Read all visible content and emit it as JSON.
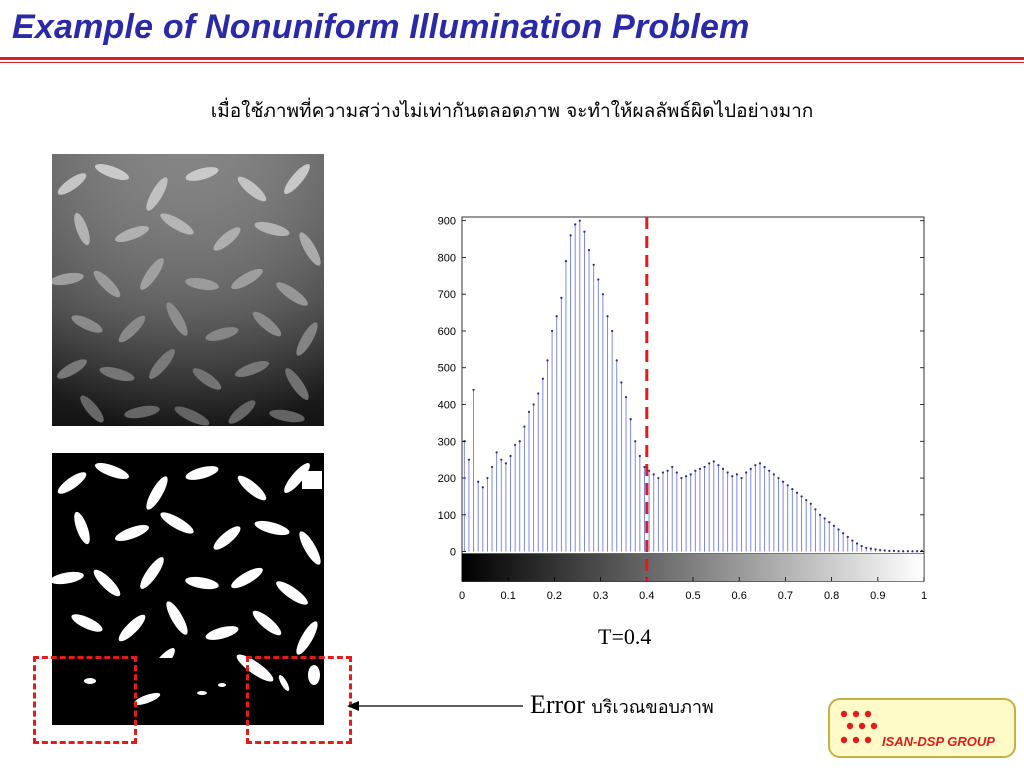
{
  "slide": {
    "title": "Example of Nonuniform Illumination Problem",
    "subtitle": "เมื่อใช้ภาพที่ความสว่างไม่เท่ากันตลอดภาพ จะทำให้ผลลัพธ์ผิดไปอย่างมาก",
    "threshold_label": "T=0.4",
    "error_label": "Error",
    "error_thai": "บริเวณขอบภาพ",
    "logo_text": "ISAN-DSP GROUP",
    "accent_color": "#d62020",
    "title_color": "#2a2aa8"
  },
  "chart_data": {
    "type": "bar",
    "title": "",
    "xlabel": "",
    "ylabel": "",
    "xlim": [
      0,
      1
    ],
    "ylim": [
      -80,
      910
    ],
    "yticks": [
      0,
      100,
      200,
      300,
      400,
      500,
      600,
      700,
      800,
      900
    ],
    "xticks": [
      0,
      0.1,
      0.2,
      0.3,
      0.4,
      0.5,
      0.6,
      0.7,
      0.8,
      0.9,
      1
    ],
    "ytick_labels": [
      "0",
      "100",
      "200",
      "300",
      "400",
      "500",
      "600",
      "700",
      "800",
      "900"
    ],
    "xtick_labels": [
      "0",
      "0.1",
      "0.2",
      "0.3",
      "0.4",
      "0.5",
      "0.6",
      "0.7",
      "0.8",
      "0.9",
      "1"
    ],
    "threshold": 0.4,
    "threshold_color": "#e41b1b",
    "bar_color": "#6f7de0",
    "x": [
      0.005,
      0.015,
      0.025,
      0.035,
      0.045,
      0.055,
      0.065,
      0.075,
      0.085,
      0.095,
      0.105,
      0.115,
      0.125,
      0.135,
      0.145,
      0.155,
      0.165,
      0.175,
      0.185,
      0.195,
      0.205,
      0.215,
      0.225,
      0.235,
      0.245,
      0.255,
      0.265,
      0.275,
      0.285,
      0.295,
      0.305,
      0.315,
      0.325,
      0.335,
      0.345,
      0.355,
      0.365,
      0.375,
      0.385,
      0.395,
      0.405,
      0.415,
      0.425,
      0.435,
      0.445,
      0.455,
      0.465,
      0.475,
      0.485,
      0.495,
      0.505,
      0.515,
      0.525,
      0.535,
      0.545,
      0.555,
      0.565,
      0.575,
      0.585,
      0.595,
      0.605,
      0.615,
      0.625,
      0.635,
      0.645,
      0.655,
      0.665,
      0.675,
      0.685,
      0.695,
      0.705,
      0.715,
      0.725,
      0.735,
      0.745,
      0.755,
      0.765,
      0.775,
      0.785,
      0.795,
      0.805,
      0.815,
      0.825,
      0.835,
      0.845,
      0.855,
      0.865,
      0.875,
      0.885,
      0.895,
      0.905,
      0.915,
      0.925,
      0.935,
      0.945,
      0.955,
      0.965,
      0.975,
      0.985,
      0.995
    ],
    "values": [
      300,
      250,
      440,
      190,
      175,
      200,
      230,
      270,
      250,
      240,
      260,
      290,
      300,
      340,
      380,
      400,
      430,
      470,
      520,
      600,
      640,
      690,
      790,
      860,
      890,
      900,
      870,
      820,
      780,
      740,
      700,
      640,
      600,
      520,
      460,
      420,
      360,
      300,
      260,
      230,
      220,
      210,
      200,
      215,
      220,
      230,
      215,
      200,
      205,
      210,
      220,
      225,
      230,
      240,
      245,
      235,
      225,
      215,
      205,
      210,
      200,
      215,
      225,
      235,
      240,
      230,
      220,
      210,
      200,
      190,
      180,
      170,
      160,
      150,
      140,
      130,
      115,
      100,
      90,
      80,
      70,
      60,
      50,
      40,
      30,
      22,
      15,
      10,
      8,
      6,
      4,
      3,
      2,
      2,
      1,
      1,
      1,
      1,
      1,
      2
    ]
  }
}
